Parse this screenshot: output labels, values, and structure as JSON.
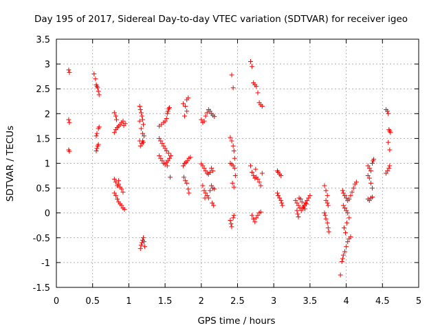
{
  "chart_data": {
    "type": "scatter",
    "title": "Day 195 of 2017, Sidereal Day-to-day VTEC variation (SDTVAR) for receiver igeo",
    "xlabel": "GPS time / hours",
    "ylabel": "SDTVAR / TECUs",
    "xlim": [
      0,
      5
    ],
    "ylim": [
      -1.5,
      3.5
    ],
    "xticks": [
      0,
      0.5,
      1,
      1.5,
      2,
      2.5,
      3,
      3.5,
      4,
      4.5,
      5
    ],
    "yticks": [
      -1.5,
      -1,
      -0.5,
      0,
      0.5,
      1,
      1.5,
      2,
      2.5,
      3,
      3.5
    ],
    "xtick_labels": [
      "0",
      "0.5",
      "1",
      "1.5",
      "2",
      "2.5",
      "3",
      "3.5",
      "4",
      "4.5",
      "5"
    ],
    "ytick_labels": [
      "-1.5",
      "-1",
      "-0.5",
      "0",
      "0.5",
      "1",
      "1.5",
      "2",
      "2.5",
      "3",
      "3.5"
    ],
    "grid": true,
    "marker": "+",
    "color": "#ff0000",
    "series": [
      {
        "name": "SDTVAR",
        "points": [
          [
            0.17,
            2.88
          ],
          [
            0.18,
            2.83
          ],
          [
            0.17,
            1.88
          ],
          [
            0.18,
            1.82
          ],
          [
            0.17,
            1.27
          ],
          [
            0.18,
            1.24
          ],
          [
            0.52,
            2.8
          ],
          [
            0.54,
            2.7
          ],
          [
            0.55,
            2.58
          ],
          [
            0.56,
            2.55
          ],
          [
            0.57,
            2.52
          ],
          [
            0.58,
            2.45
          ],
          [
            0.59,
            2.38
          ],
          [
            0.55,
            1.55
          ],
          [
            0.56,
            1.6
          ],
          [
            0.58,
            1.7
          ],
          [
            0.59,
            1.73
          ],
          [
            0.55,
            1.25
          ],
          [
            0.56,
            1.3
          ],
          [
            0.57,
            1.35
          ],
          [
            0.58,
            1.38
          ],
          [
            0.8,
            2.02
          ],
          [
            0.82,
            1.95
          ],
          [
            0.83,
            1.88
          ],
          [
            0.8,
            1.62
          ],
          [
            0.82,
            1.68
          ],
          [
            0.84,
            1.72
          ],
          [
            0.86,
            1.75
          ],
          [
            0.88,
            1.78
          ],
          [
            0.9,
            1.82
          ],
          [
            0.92,
            1.85
          ],
          [
            0.93,
            1.76
          ],
          [
            0.95,
            1.8
          ],
          [
            0.8,
            0.68
          ],
          [
            0.82,
            0.62
          ],
          [
            0.84,
            0.55
          ],
          [
            0.86,
            0.58
          ],
          [
            0.88,
            0.52
          ],
          [
            0.9,
            0.48
          ],
          [
            0.92,
            0.42
          ],
          [
            0.86,
            0.65
          ],
          [
            0.8,
            0.4
          ],
          [
            0.82,
            0.35
          ],
          [
            0.84,
            0.28
          ],
          [
            0.86,
            0.22
          ],
          [
            0.88,
            0.18
          ],
          [
            0.9,
            0.15
          ],
          [
            0.92,
            0.1
          ],
          [
            0.94,
            0.07
          ],
          [
            1.15,
            2.15
          ],
          [
            1.16,
            2.08
          ],
          [
            1.17,
            2.02
          ],
          [
            1.18,
            1.95
          ],
          [
            1.19,
            1.88
          ],
          [
            1.2,
            1.78
          ],
          [
            1.15,
            1.85
          ],
          [
            1.17,
            1.7
          ],
          [
            1.19,
            1.6
          ],
          [
            1.21,
            1.55
          ],
          [
            1.15,
            1.45
          ],
          [
            1.16,
            1.35
          ],
          [
            1.18,
            1.4
          ],
          [
            1.19,
            1.45
          ],
          [
            1.2,
            1.42
          ],
          [
            1.16,
            -0.72
          ],
          [
            1.17,
            -0.65
          ],
          [
            1.18,
            -0.6
          ],
          [
            1.19,
            -0.55
          ],
          [
            1.2,
            -0.5
          ],
          [
            1.21,
            -0.58
          ],
          [
            1.22,
            -0.68
          ],
          [
            1.42,
            1.75
          ],
          [
            1.45,
            1.78
          ],
          [
            1.48,
            1.82
          ],
          [
            1.5,
            1.85
          ],
          [
            1.52,
            1.9
          ],
          [
            1.53,
            2.0
          ],
          [
            1.54,
            2.05
          ],
          [
            1.55,
            2.1
          ],
          [
            1.56,
            2.12
          ],
          [
            1.42,
            1.5
          ],
          [
            1.44,
            1.45
          ],
          [
            1.46,
            1.4
          ],
          [
            1.48,
            1.35
          ],
          [
            1.5,
            1.3
          ],
          [
            1.52,
            1.25
          ],
          [
            1.42,
            1.15
          ],
          [
            1.44,
            1.1
          ],
          [
            1.46,
            1.05
          ],
          [
            1.48,
            1.0
          ],
          [
            1.5,
            0.98
          ],
          [
            1.52,
            1.02
          ],
          [
            1.54,
            1.05
          ],
          [
            1.56,
            1.1
          ],
          [
            1.58,
            1.15
          ],
          [
            1.53,
            0.95
          ],
          [
            1.55,
            1.2
          ],
          [
            1.57,
            0.72
          ],
          [
            1.75,
            2.2
          ],
          [
            1.78,
            2.15
          ],
          [
            1.8,
            2.28
          ],
          [
            1.82,
            2.32
          ],
          [
            1.8,
            2.05
          ],
          [
            1.77,
            1.95
          ],
          [
            1.75,
            0.95
          ],
          [
            1.77,
            1.0
          ],
          [
            1.79,
            1.02
          ],
          [
            1.81,
            1.05
          ],
          [
            1.83,
            1.1
          ],
          [
            1.85,
            1.12
          ],
          [
            1.76,
            0.72
          ],
          [
            1.78,
            0.65
          ],
          [
            1.8,
            0.6
          ],
          [
            1.82,
            0.48
          ],
          [
            1.83,
            0.4
          ],
          [
            2.0,
            1.88
          ],
          [
            2.02,
            1.82
          ],
          [
            2.04,
            1.85
          ],
          [
            2.06,
            1.95
          ],
          [
            2.08,
            2.02
          ],
          [
            2.1,
            2.08
          ],
          [
            2.12,
            2.05
          ],
          [
            2.14,
            2.0
          ],
          [
            2.16,
            1.97
          ],
          [
            2.18,
            1.94
          ],
          [
            2.0,
            0.99
          ],
          [
            2.02,
            0.95
          ],
          [
            2.04,
            0.9
          ],
          [
            2.06,
            0.85
          ],
          [
            2.08,
            0.8
          ],
          [
            2.1,
            0.78
          ],
          [
            2.12,
            0.82
          ],
          [
            2.14,
            0.9
          ],
          [
            2.16,
            0.85
          ],
          [
            2.02,
            0.55
          ],
          [
            2.04,
            0.45
          ],
          [
            2.06,
            0.4
          ],
          [
            2.08,
            0.35
          ],
          [
            2.1,
            0.3
          ],
          [
            2.12,
            0.45
          ],
          [
            2.14,
            0.55
          ],
          [
            2.16,
            0.5
          ],
          [
            2.18,
            0.48
          ],
          [
            2.05,
            0.3
          ],
          [
            2.15,
            0.2
          ],
          [
            2.17,
            0.15
          ],
          [
            2.42,
            2.78
          ],
          [
            2.44,
            2.52
          ],
          [
            2.4,
            1.52
          ],
          [
            2.42,
            1.45
          ],
          [
            2.44,
            1.35
          ],
          [
            2.45,
            1.25
          ],
          [
            2.46,
            1.1
          ],
          [
            2.4,
            1.0
          ],
          [
            2.42,
            0.98
          ],
          [
            2.44,
            0.95
          ],
          [
            2.46,
            0.9
          ],
          [
            2.47,
            0.75
          ],
          [
            2.43,
            0.6
          ],
          [
            2.45,
            0.52
          ],
          [
            2.4,
            -0.15
          ],
          [
            2.41,
            -0.22
          ],
          [
            2.42,
            -0.28
          ],
          [
            2.44,
            -0.1
          ],
          [
            2.45,
            -0.05
          ],
          [
            2.68,
            3.05
          ],
          [
            2.7,
            2.95
          ],
          [
            2.72,
            2.62
          ],
          [
            2.74,
            2.58
          ],
          [
            2.76,
            2.55
          ],
          [
            2.78,
            2.42
          ],
          [
            2.8,
            2.22
          ],
          [
            2.82,
            2.18
          ],
          [
            2.84,
            2.15
          ],
          [
            2.7,
            0.82
          ],
          [
            2.72,
            0.75
          ],
          [
            2.74,
            0.7
          ],
          [
            2.76,
            0.72
          ],
          [
            2.78,
            0.68
          ],
          [
            2.8,
            0.62
          ],
          [
            2.82,
            0.55
          ],
          [
            2.75,
            0.88
          ],
          [
            2.68,
            0.95
          ],
          [
            2.7,
            -0.05
          ],
          [
            2.72,
            -0.12
          ],
          [
            2.74,
            -0.18
          ],
          [
            2.76,
            -0.1
          ],
          [
            2.78,
            -0.05
          ],
          [
            2.8,
            0.0
          ],
          [
            2.82,
            0.02
          ],
          [
            2.84,
            0.8
          ],
          [
            3.05,
            0.85
          ],
          [
            3.06,
            0.82
          ],
          [
            3.08,
            0.78
          ],
          [
            3.1,
            0.75
          ],
          [
            3.05,
            0.4
          ],
          [
            3.06,
            0.35
          ],
          [
            3.08,
            0.3
          ],
          [
            3.1,
            0.25
          ],
          [
            3.11,
            0.2
          ],
          [
            3.12,
            0.15
          ],
          [
            3.3,
            0.25
          ],
          [
            3.32,
            0.2
          ],
          [
            3.34,
            0.15
          ],
          [
            3.36,
            0.1
          ],
          [
            3.38,
            0.05
          ],
          [
            3.4,
            0.1
          ],
          [
            3.42,
            0.15
          ],
          [
            3.44,
            0.2
          ],
          [
            3.46,
            0.25
          ],
          [
            3.48,
            0.3
          ],
          [
            3.5,
            0.35
          ],
          [
            3.32,
            0.05
          ],
          [
            3.33,
            -0.02
          ],
          [
            3.34,
            -0.08
          ],
          [
            3.35,
            0.3
          ],
          [
            3.37,
            0.28
          ],
          [
            3.39,
            0.22
          ],
          [
            3.41,
            0.12
          ],
          [
            3.43,
            0.08
          ],
          [
            3.45,
            0.18
          ],
          [
            3.7,
            0.55
          ],
          [
            3.72,
            0.45
          ],
          [
            3.74,
            0.35
          ],
          [
            3.72,
            0.25
          ],
          [
            3.74,
            0.2
          ],
          [
            3.75,
            0.15
          ],
          [
            3.7,
            0.0
          ],
          [
            3.71,
            -0.05
          ],
          [
            3.72,
            -0.12
          ],
          [
            3.74,
            -0.2
          ],
          [
            3.75,
            -0.3
          ],
          [
            3.76,
            -0.38
          ],
          [
            3.92,
            -1.25
          ],
          [
            3.94,
            -0.98
          ],
          [
            3.95,
            -0.92
          ],
          [
            3.96,
            -0.85
          ],
          [
            3.98,
            -0.78
          ],
          [
            4.0,
            -0.68
          ],
          [
            4.02,
            -0.58
          ],
          [
            4.04,
            -0.52
          ],
          [
            4.06,
            -0.48
          ],
          [
            3.95,
            0.45
          ],
          [
            3.96,
            0.4
          ],
          [
            3.98,
            0.35
          ],
          [
            4.0,
            0.3
          ],
          [
            4.02,
            0.25
          ],
          [
            4.04,
            0.28
          ],
          [
            4.06,
            0.35
          ],
          [
            4.08,
            0.42
          ],
          [
            4.1,
            0.5
          ],
          [
            4.12,
            0.58
          ],
          [
            4.14,
            0.62
          ],
          [
            3.96,
            0.15
          ],
          [
            3.98,
            0.1
          ],
          [
            4.0,
            0.05
          ],
          [
            4.02,
            0.0
          ],
          [
            4.04,
            -0.1
          ],
          [
            3.97,
            -0.3
          ],
          [
            3.99,
            -0.4
          ],
          [
            4.01,
            -0.2
          ],
          [
            4.3,
            0.95
          ],
          [
            4.32,
            0.9
          ],
          [
            4.34,
            0.85
          ],
          [
            4.36,
            1.0
          ],
          [
            4.38,
            1.08
          ],
          [
            4.37,
            1.05
          ],
          [
            4.3,
            0.75
          ],
          [
            4.32,
            0.7
          ],
          [
            4.34,
            0.6
          ],
          [
            4.36,
            0.5
          ],
          [
            4.3,
            0.28
          ],
          [
            4.32,
            0.25
          ],
          [
            4.34,
            0.3
          ],
          [
            4.36,
            0.32
          ],
          [
            4.55,
            2.08
          ],
          [
            4.57,
            2.05
          ],
          [
            4.58,
            2.0
          ],
          [
            4.59,
            1.68
          ],
          [
            4.6,
            1.65
          ],
          [
            4.61,
            1.62
          ],
          [
            4.58,
            1.42
          ],
          [
            4.6,
            1.27
          ],
          [
            4.55,
            0.8
          ],
          [
            4.57,
            0.85
          ],
          [
            4.59,
            0.9
          ],
          [
            4.6,
            0.95
          ]
        ]
      }
    ]
  }
}
